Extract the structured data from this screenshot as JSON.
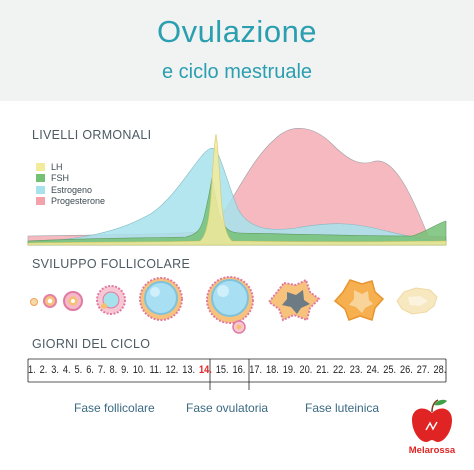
{
  "title": "Ovulazione",
  "subtitle": "e ciclo mestruale",
  "sections": {
    "hormones": "LIVELLI ORMONALI",
    "follicle": "SVILUPPO FOLLICOLARE",
    "days": "GIORNI DEL CICLO"
  },
  "legend": [
    {
      "label": "LH",
      "color": "#f3ea9c"
    },
    {
      "label": "FSH",
      "color": "#74c176"
    },
    {
      "label": "Estrogeno",
      "color": "#a6e2ec"
    },
    {
      "label": "Progesterone",
      "color": "#f3a1aa"
    }
  ],
  "days": [
    "1.",
    "2.",
    "3.",
    "4.",
    "5.",
    "6.",
    "7.",
    "8.",
    "9.",
    "10.",
    "11.",
    "12.",
    "13.",
    "14.",
    "15.",
    "16.",
    "17.",
    "18.",
    "19.",
    "20.",
    "21.",
    "22.",
    "23.",
    "24.",
    "25.",
    "26.",
    "27.",
    "28."
  ],
  "highlight_day": "14.",
  "highlight_color": "#e02424",
  "phases": [
    "Fase follicolare",
    "Fase ovulatoria",
    "Fase luteinica"
  ],
  "brand": "Melarossa",
  "colors": {
    "accent": "#2a9fb0",
    "brand": "#e02424"
  }
}
